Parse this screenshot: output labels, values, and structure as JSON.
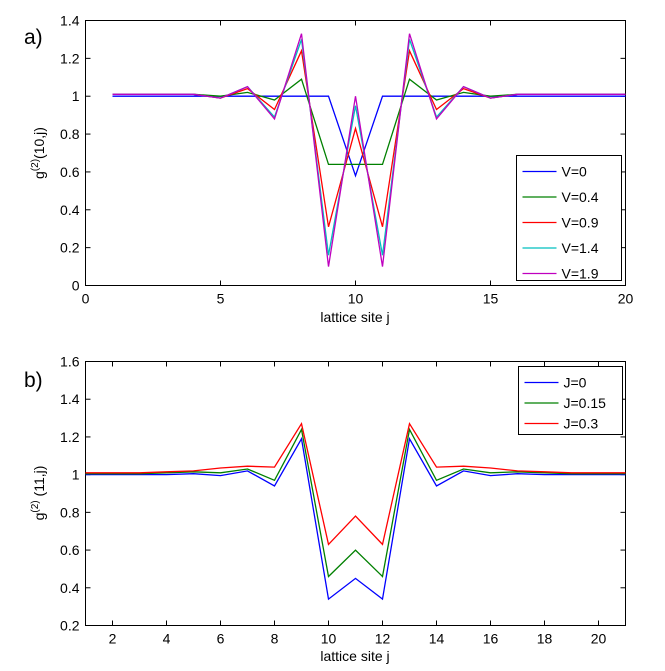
{
  "chart_data": [
    {
      "panel_label": "a)",
      "type": "line",
      "xlabel": "lattice site j",
      "ylabel_main": "g",
      "ylabel_sup": "(2)",
      "ylabel_tail": "(10,j)",
      "xlim": [
        0,
        20
      ],
      "ylim": [
        0,
        1.4
      ],
      "xticks": [
        0,
        5,
        10,
        15,
        20
      ],
      "yticks": [
        0,
        0.2,
        0.4,
        0.6,
        0.8,
        1,
        1.2,
        1.4
      ],
      "x": [
        1,
        2,
        3,
        4,
        5,
        6,
        7,
        8,
        9,
        10,
        11,
        12,
        13,
        14,
        15,
        16,
        17,
        18,
        19,
        20
      ],
      "legend_position": "lower-right",
      "series": [
        {
          "name": "V=0",
          "color": "#0000ff",
          "values": [
            1,
            1,
            1,
            1,
            1,
            1,
            1,
            1,
            1,
            0.58,
            1,
            1,
            1,
            1,
            1,
            1,
            1,
            1,
            1,
            1
          ]
        },
        {
          "name": "V=0.4",
          "color": "#008000",
          "values": [
            1.01,
            1.01,
            1.01,
            1.01,
            1,
            1.02,
            0.98,
            1.09,
            0.64,
            0.64,
            0.64,
            1.09,
            0.98,
            1.02,
            1,
            1.01,
            1.01,
            1.01,
            1.01,
            1.01
          ]
        },
        {
          "name": "V=0.9",
          "color": "#ff0000",
          "values": [
            1.01,
            1.01,
            1.01,
            1.01,
            0.99,
            1.04,
            0.93,
            1.24,
            0.31,
            0.83,
            0.31,
            1.24,
            0.93,
            1.04,
            0.99,
            1.01,
            1.01,
            1.01,
            1.01,
            1.01
          ]
        },
        {
          "name": "V=1.4",
          "color": "#00bfbf",
          "values": [
            1.01,
            1.01,
            1.01,
            1.01,
            0.99,
            1.05,
            0.89,
            1.3,
            0.16,
            0.95,
            0.16,
            1.3,
            0.89,
            1.05,
            0.99,
            1.01,
            1.01,
            1.01,
            1.01,
            1.01
          ]
        },
        {
          "name": "V=1.9",
          "color": "#bf00bf",
          "values": [
            1.01,
            1.01,
            1.01,
            1.01,
            0.99,
            1.05,
            0.88,
            1.33,
            0.1,
            1,
            0.1,
            1.33,
            0.88,
            1.05,
            0.99,
            1.01,
            1.01,
            1.01,
            1.01,
            1.01
          ]
        }
      ]
    },
    {
      "panel_label": "b)",
      "type": "line",
      "xlabel": "lattice site j",
      "ylabel_main": "g",
      "ylabel_sup": "(2)",
      "ylabel_tail": " (11,j)",
      "xlim": [
        1,
        21
      ],
      "ylim": [
        0.2,
        1.6
      ],
      "xticks": [
        2,
        4,
        6,
        8,
        10,
        12,
        14,
        16,
        18,
        20
      ],
      "yticks": [
        0.2,
        0.4,
        0.6,
        0.8,
        1,
        1.2,
        1.4,
        1.6
      ],
      "x": [
        1,
        2,
        3,
        4,
        5,
        6,
        7,
        8,
        9,
        10,
        11,
        12,
        13,
        14,
        15,
        16,
        17,
        18,
        19,
        20,
        21
      ],
      "legend_position": "top-right",
      "series": [
        {
          "name": "J=0",
          "color": "#0000ff",
          "values": [
            1,
            1,
            1,
            1,
            1.005,
            0.995,
            1.02,
            0.94,
            1.19,
            0.34,
            0.45,
            0.34,
            1.19,
            0.94,
            1.02,
            0.995,
            1.005,
            1,
            1,
            1,
            1
          ]
        },
        {
          "name": "J=0.15",
          "color": "#008000",
          "values": [
            1.005,
            1.005,
            1.005,
            1.01,
            1.015,
            1.01,
            1.03,
            0.97,
            1.24,
            0.46,
            0.6,
            0.46,
            1.24,
            0.97,
            1.03,
            1.01,
            1.015,
            1.01,
            1.005,
            1.005,
            1.005
          ]
        },
        {
          "name": "J=0.3",
          "color": "#ff0000",
          "values": [
            1.01,
            1.01,
            1.01,
            1.015,
            1.02,
            1.035,
            1.045,
            1.04,
            1.27,
            0.63,
            0.78,
            0.63,
            1.27,
            1.04,
            1.045,
            1.035,
            1.02,
            1.015,
            1.01,
            1.01,
            1.01
          ]
        }
      ]
    }
  ]
}
